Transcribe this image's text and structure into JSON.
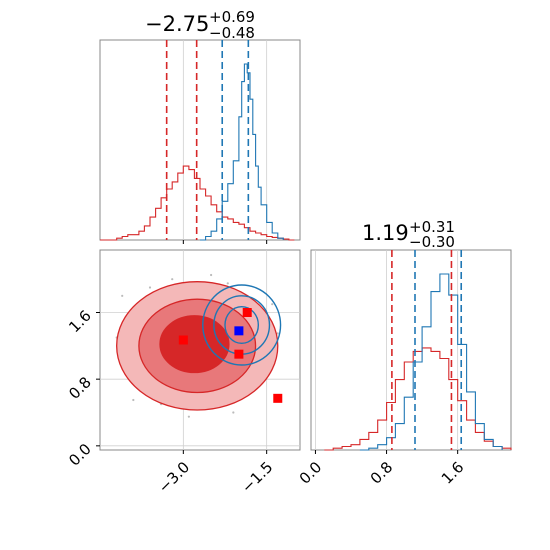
{
  "chart_data": {
    "type": "corner",
    "colors": {
      "red": "#d62728",
      "blue": "#1f77b4",
      "red_fill": "#f1a7a7",
      "grid": "#d0d0d0",
      "marker_blue": "#0000ff",
      "marker_red": "#ff0000"
    },
    "param1": {
      "title": {
        "main": "−2.75",
        "plus": "+0.69",
        "minus": "−0.48"
      },
      "xlim": [
        -4.5,
        -0.9
      ],
      "ticks": [
        {
          "value": -3.0,
          "label": "−3.0"
        },
        {
          "value": -1.5,
          "label": "−1.5"
        }
      ],
      "red_quantiles": [
        -3.3,
        -2.76
      ],
      "blue_quantiles": [
        -2.3,
        -1.83
      ],
      "hist_red": [
        [
          -4.5,
          0
        ],
        [
          -4.4,
          0
        ],
        [
          -4.3,
          0
        ],
        [
          -4.2,
          0.01
        ],
        [
          -4.1,
          0.02
        ],
        [
          -4.0,
          0.03
        ],
        [
          -3.9,
          0.03
        ],
        [
          -3.8,
          0.05
        ],
        [
          -3.7,
          0.08
        ],
        [
          -3.6,
          0.13
        ],
        [
          -3.5,
          0.18
        ],
        [
          -3.4,
          0.24
        ],
        [
          -3.3,
          0.29
        ],
        [
          -3.2,
          0.33
        ],
        [
          -3.1,
          0.38
        ],
        [
          -3.0,
          0.42
        ],
        [
          -2.9,
          0.4
        ],
        [
          -2.8,
          0.35
        ],
        [
          -2.7,
          0.29
        ],
        [
          -2.6,
          0.25
        ],
        [
          -2.5,
          0.2
        ],
        [
          -2.4,
          0.16
        ],
        [
          -2.3,
          0.13
        ],
        [
          -2.2,
          0.12
        ],
        [
          -2.1,
          0.1
        ],
        [
          -2.0,
          0.09
        ],
        [
          -1.9,
          0.07
        ],
        [
          -1.8,
          0.05
        ],
        [
          -1.7,
          0.04
        ],
        [
          -1.6,
          0.03
        ],
        [
          -1.5,
          0.02
        ],
        [
          -1.4,
          0.015
        ],
        [
          -1.3,
          0.01
        ],
        [
          -1.2,
          0.005
        ],
        [
          -1.1,
          0
        ],
        [
          -1.0,
          0
        ]
      ],
      "hist_blue": [
        [
          -2.7,
          0
        ],
        [
          -2.6,
          0.02
        ],
        [
          -2.5,
          0.05
        ],
        [
          -2.4,
          0.12
        ],
        [
          -2.3,
          0.22
        ],
        [
          -2.2,
          0.32
        ],
        [
          -2.1,
          0.45
        ],
        [
          -2.0,
          0.7
        ],
        [
          -1.95,
          0.9
        ],
        [
          -1.9,
          1.0
        ],
        [
          -1.85,
          0.95
        ],
        [
          -1.8,
          0.8
        ],
        [
          -1.75,
          0.6
        ],
        [
          -1.7,
          0.42
        ],
        [
          -1.65,
          0.3
        ],
        [
          -1.6,
          0.2
        ],
        [
          -1.5,
          0.1
        ],
        [
          -1.4,
          0.04
        ],
        [
          -1.3,
          0.01
        ],
        [
          -1.2,
          0
        ]
      ]
    },
    "param2": {
      "title": {
        "main": "1.19",
        "plus": "+0.31",
        "minus": "−0.30"
      },
      "xlim": [
        -0.05,
        2.2
      ],
      "ticks": [
        {
          "value": 0.0,
          "label": "0.0"
        },
        {
          "value": 0.8,
          "label": "0.8"
        },
        {
          "value": 1.6,
          "label": "1.6"
        }
      ],
      "red_quantiles": [
        0.86,
        1.53
      ],
      "blue_quantiles": [
        1.12,
        1.64
      ],
      "hist_red": [
        [
          0.1,
          0
        ],
        [
          0.2,
          0.01
        ],
        [
          0.3,
          0.02
        ],
        [
          0.4,
          0.03
        ],
        [
          0.5,
          0.06
        ],
        [
          0.6,
          0.1
        ],
        [
          0.7,
          0.17
        ],
        [
          0.8,
          0.27
        ],
        [
          0.9,
          0.4
        ],
        [
          1.0,
          0.5
        ],
        [
          1.1,
          0.56
        ],
        [
          1.2,
          0.58
        ],
        [
          1.3,
          0.56
        ],
        [
          1.4,
          0.52
        ],
        [
          1.5,
          0.4
        ],
        [
          1.6,
          0.28
        ],
        [
          1.7,
          0.17
        ],
        [
          1.8,
          0.1
        ],
        [
          1.9,
          0.05
        ],
        [
          2.0,
          0.02
        ],
        [
          2.1,
          0.01
        ],
        [
          2.2,
          0
        ]
      ],
      "hist_blue": [
        [
          0.5,
          0
        ],
        [
          0.6,
          0.01
        ],
        [
          0.7,
          0.03
        ],
        [
          0.8,
          0.07
        ],
        [
          0.9,
          0.15
        ],
        [
          1.0,
          0.3
        ],
        [
          1.1,
          0.5
        ],
        [
          1.2,
          0.7
        ],
        [
          1.3,
          0.9
        ],
        [
          1.4,
          1.0
        ],
        [
          1.5,
          0.88
        ],
        [
          1.6,
          0.6
        ],
        [
          1.7,
          0.33
        ],
        [
          1.8,
          0.15
        ],
        [
          1.9,
          0.06
        ],
        [
          2.0,
          0.02
        ],
        [
          2.1,
          0
        ]
      ]
    },
    "joint": {
      "ylim": [
        -0.05,
        2.35
      ],
      "yticks": [
        {
          "value": 0.0,
          "label": "0.0"
        },
        {
          "value": 0.8,
          "label": "0.8"
        },
        {
          "value": 1.6,
          "label": "1.6"
        }
      ],
      "red_contours": [
        {
          "cx": -2.75,
          "cy": 1.2,
          "rx": 1.45,
          "ry": 0.77,
          "fill": true
        },
        {
          "cx": -2.75,
          "cy": 1.2,
          "rx": 1.05,
          "ry": 0.56,
          "fill": true
        },
        {
          "cx": -2.8,
          "cy": 1.22,
          "rx": 0.62,
          "ry": 0.34,
          "fill": true
        }
      ],
      "blue_contours": [
        {
          "cx": -1.95,
          "cy": 1.45,
          "rx": 0.7,
          "ry": 0.48
        },
        {
          "cx": -1.95,
          "cy": 1.45,
          "rx": 0.5,
          "ry": 0.35
        },
        {
          "cx": -1.95,
          "cy": 1.45,
          "rx": 0.3,
          "ry": 0.22
        }
      ],
      "red_markers": [
        {
          "x": -3.0,
          "y": 1.27
        },
        {
          "x": -1.85,
          "y": 1.6
        },
        {
          "x": -2.0,
          "y": 1.1
        },
        {
          "x": -1.3,
          "y": 0.57
        }
      ],
      "blue_markers": [
        {
          "x": -2.0,
          "y": 1.38
        }
      ]
    }
  }
}
